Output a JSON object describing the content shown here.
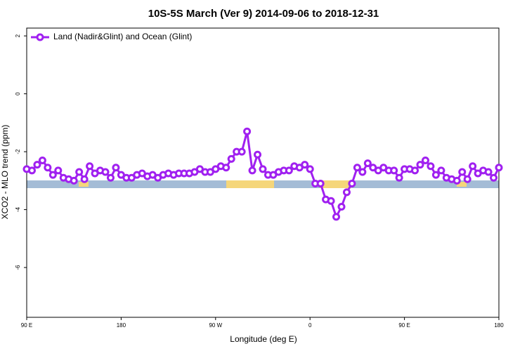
{
  "chart_data": {
    "type": "line",
    "title": "10S-5S March (Ver 9)   2014-09-06 to 2018-12-31",
    "x_label": "Longitude (deg E)",
    "y_label": "XCO2 - MLO trend (ppm)",
    "xlim": [
      90,
      540
    ],
    "ylim": [
      -7.72,
      2.27
    ],
    "xticks": [
      {
        "value": 90,
        "label": "90 E"
      },
      180,
      {
        "value": 270,
        "label": "90 W"
      },
      {
        "value": 360,
        "label": "0"
      },
      {
        "value": 450,
        "label": "90 E"
      },
      {
        "value": 540,
        "label": "180"
      }
    ],
    "yticks": [
      2,
      0,
      -2,
      -4,
      -6
    ],
    "legend": "top-left",
    "x": [
      90,
      95,
      100,
      105,
      110,
      115,
      120,
      125,
      130,
      135,
      140,
      145,
      150,
      155,
      160,
      165,
      170,
      175,
      180,
      185,
      190,
      195,
      200,
      205,
      210,
      215,
      220,
      225,
      230,
      235,
      240,
      245,
      250,
      255,
      260,
      265,
      270,
      275,
      280,
      285,
      290,
      295,
      300,
      305,
      310,
      315,
      320,
      325,
      330,
      335,
      340,
      345,
      350,
      355,
      360,
      365,
      370,
      375,
      380,
      385,
      390,
      395,
      400,
      405,
      410,
      415,
      420,
      425,
      430,
      435,
      440,
      445,
      450,
      455,
      460,
      465,
      470,
      475,
      480,
      485,
      490,
      495,
      500,
      505,
      510,
      515,
      520,
      525,
      530,
      535,
      540
    ],
    "series": [
      {
        "name": "Land (Nadir&Glint) and Ocean (Glint)",
        "color": "#a020f0",
        "values": [
          -2.6,
          -2.65,
          -2.45,
          -2.3,
          -2.55,
          -2.8,
          -2.65,
          -2.9,
          -2.95,
          -3.0,
          -2.7,
          -2.95,
          -2.5,
          -2.75,
          -2.65,
          -2.7,
          -2.9,
          -2.55,
          -2.8,
          -2.9,
          -2.9,
          -2.8,
          -2.75,
          -2.85,
          -2.8,
          -2.9,
          -2.8,
          -2.75,
          -2.8,
          -2.75,
          -2.75,
          -2.75,
          -2.7,
          -2.6,
          -2.7,
          -2.7,
          -2.6,
          -2.5,
          -2.55,
          -2.25,
          -2.0,
          -2.0,
          -1.3,
          -2.65,
          -2.1,
          -2.6,
          -2.8,
          -2.8,
          -2.7,
          -2.65,
          -2.65,
          -2.5,
          -2.55,
          -2.45,
          -2.6,
          -3.1,
          -3.1,
          -3.65,
          -3.7,
          -4.25,
          -3.9,
          -3.4,
          -3.1,
          -2.55,
          -2.7,
          -2.4,
          -2.55,
          -2.65,
          -2.55,
          -2.65,
          -2.65,
          -2.9,
          -2.6,
          -2.6,
          -2.65,
          -2.45,
          -2.3,
          -2.5,
          -2.8,
          -2.65,
          -2.9,
          -2.95,
          -3.0,
          -2.7,
          -2.95,
          -2.5,
          -2.75,
          -2.65,
          -2.7,
          -2.9,
          -2.55
        ]
      }
    ]
  }
}
